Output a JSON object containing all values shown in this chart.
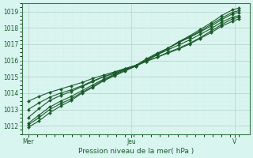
{
  "bg_color": "#d8f5f0",
  "grid_color_major": "#c0d8d4",
  "grid_color_minor": "#dbeee9",
  "line_color": "#1a5c2a",
  "marker_color": "#1a5c2a",
  "xlabel": "Pression niveau de la mer( hPa )",
  "xlabel_color": "#1a5c2a",
  "tick_color": "#1a5c2a",
  "spine_color": "#3a7a4a",
  "ylim": [
    1011.5,
    1019.5
  ],
  "yticks": [
    1012,
    1013,
    1014,
    1015,
    1016,
    1017,
    1018,
    1019
  ],
  "x_tick_labels": [
    "Mer",
    "Jeu",
    "V"
  ],
  "x_tick_positions": [
    0.02,
    0.5,
    0.98
  ],
  "xlim": [
    -0.01,
    1.05
  ],
  "line_data": [
    {
      "x": [
        0.02,
        0.07,
        0.12,
        0.17,
        0.22,
        0.27,
        0.32,
        0.37,
        0.42,
        0.47,
        0.52,
        0.57,
        0.62,
        0.67,
        0.72,
        0.77,
        0.82,
        0.87,
        0.92,
        0.97,
        1.0
      ],
      "y": [
        1011.9,
        1012.3,
        1012.8,
        1013.2,
        1013.55,
        1014.0,
        1014.35,
        1014.75,
        1015.05,
        1015.35,
        1015.65,
        1016.0,
        1016.35,
        1016.75,
        1017.15,
        1017.5,
        1017.9,
        1018.3,
        1018.75,
        1019.1,
        1019.2
      ]
    },
    {
      "x": [
        0.02,
        0.07,
        0.12,
        0.17,
        0.22,
        0.27,
        0.32,
        0.37,
        0.42,
        0.47,
        0.52,
        0.57,
        0.62,
        0.67,
        0.72,
        0.77,
        0.82,
        0.87,
        0.92,
        0.97,
        1.0
      ],
      "y": [
        1012.05,
        1012.5,
        1013.0,
        1013.35,
        1013.65,
        1014.05,
        1014.4,
        1014.8,
        1015.1,
        1015.4,
        1015.65,
        1016.05,
        1016.4,
        1016.75,
        1017.1,
        1017.45,
        1017.8,
        1018.2,
        1018.6,
        1018.95,
        1019.05
      ]
    },
    {
      "x": [
        0.02,
        0.07,
        0.12,
        0.17,
        0.22,
        0.27,
        0.32,
        0.37,
        0.42,
        0.47,
        0.52,
        0.57,
        0.62,
        0.67,
        0.72,
        0.77,
        0.82,
        0.87,
        0.92,
        0.97,
        1.0
      ],
      "y": [
        1012.15,
        1012.65,
        1013.15,
        1013.5,
        1013.8,
        1014.15,
        1014.5,
        1014.85,
        1015.15,
        1015.45,
        1015.7,
        1016.1,
        1016.45,
        1016.75,
        1017.1,
        1017.4,
        1017.75,
        1018.1,
        1018.5,
        1018.85,
        1018.95
      ]
    },
    {
      "x": [
        0.02,
        0.07,
        0.12,
        0.17,
        0.22,
        0.27,
        0.32,
        0.37,
        0.42,
        0.47,
        0.52,
        0.57,
        0.62,
        0.67,
        0.72,
        0.77,
        0.82,
        0.87,
        0.92,
        0.97,
        1.0
      ],
      "y": [
        1012.5,
        1013.05,
        1013.55,
        1013.85,
        1014.1,
        1014.4,
        1014.7,
        1015.0,
        1015.25,
        1015.5,
        1015.7,
        1016.0,
        1016.35,
        1016.65,
        1016.95,
        1017.25,
        1017.6,
        1017.95,
        1018.35,
        1018.65,
        1018.75
      ]
    },
    {
      "x": [
        0.02,
        0.07,
        0.12,
        0.17,
        0.22,
        0.27,
        0.32,
        0.37,
        0.42,
        0.47,
        0.52,
        0.57,
        0.62,
        0.67,
        0.72,
        0.77,
        0.82,
        0.87,
        0.92,
        0.97,
        1.0
      ],
      "y": [
        1013.0,
        1013.4,
        1013.75,
        1014.0,
        1014.2,
        1014.45,
        1014.75,
        1015.0,
        1015.2,
        1015.45,
        1015.65,
        1015.95,
        1016.2,
        1016.5,
        1016.75,
        1017.05,
        1017.4,
        1017.8,
        1018.2,
        1018.55,
        1018.65
      ]
    },
    {
      "x": [
        0.02,
        0.07,
        0.12,
        0.17,
        0.22,
        0.27,
        0.32,
        0.37,
        0.42,
        0.47,
        0.52,
        0.57,
        0.62,
        0.67,
        0.72,
        0.77,
        0.82,
        0.87,
        0.92,
        0.97,
        1.0
      ],
      "y": [
        1013.5,
        1013.8,
        1014.05,
        1014.25,
        1014.45,
        1014.65,
        1014.9,
        1015.1,
        1015.3,
        1015.5,
        1015.7,
        1015.95,
        1016.2,
        1016.45,
        1016.7,
        1017.0,
        1017.35,
        1017.7,
        1018.1,
        1018.4,
        1018.55
      ]
    }
  ]
}
